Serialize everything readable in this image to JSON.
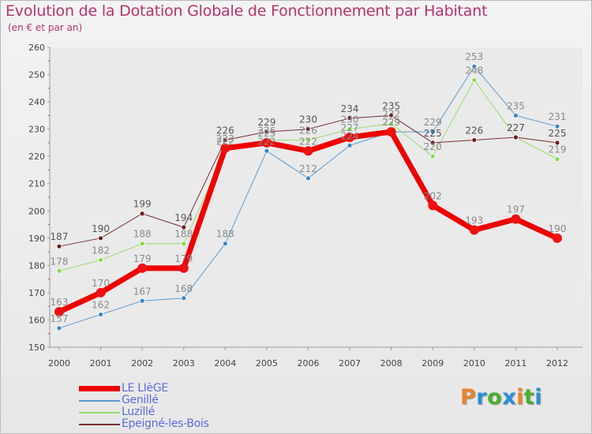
{
  "header": {
    "title": "Evolution de la Dotation Globale de Fonctionnement par Habitant",
    "subtitle": "(en € et par an)"
  },
  "logo": {
    "text": "Proxiti",
    "letters": [
      {
        "char": "P",
        "color": "#e8842a"
      },
      {
        "char": "r",
        "color": "#2a8fd6"
      },
      {
        "char": "o",
        "color": "#4dae2f"
      },
      {
        "char": "x",
        "color": "#2a8fd6"
      },
      {
        "char": "i",
        "color": "#e8842a"
      },
      {
        "char": "t",
        "color": "#4dae2f"
      },
      {
        "char": "i",
        "color": "#2a8fd6"
      }
    ]
  },
  "chart_data": {
    "type": "line",
    "title": "Evolution de la Dotation Globale de Fonctionnement par Habitant",
    "subtitle": "(en € et par an)",
    "xlabel": "",
    "ylabel": "",
    "categories": [
      "2000",
      "2001",
      "2002",
      "2003",
      "2004",
      "2005",
      "2006",
      "2007",
      "2008",
      "2009",
      "2010",
      "2011",
      "2012"
    ],
    "ylim": [
      150,
      260
    ],
    "yticks": [
      150,
      160,
      170,
      180,
      190,
      200,
      210,
      220,
      230,
      240,
      250,
      260
    ],
    "grid": false,
    "legend_position": "bottom-left",
    "series": [
      {
        "name": "LE LIèGE",
        "color": "#ee0000",
        "marker": "#ee1111",
        "width": 7,
        "values": [
          163,
          170,
          179,
          179,
          223,
          225,
          222,
          227,
          229,
          202,
          193,
          197,
          190
        ]
      },
      {
        "name": "Genillé",
        "color": "#5b9bd0",
        "marker": "#3a85c8",
        "width": 1,
        "values": [
          157,
          162,
          167,
          168,
          188,
          222,
          212,
          224,
          229,
          229,
          253,
          235,
          231
        ]
      },
      {
        "name": "Luzillé",
        "color": "#98de6e",
        "marker": "#86d94f",
        "width": 1,
        "values": [
          178,
          182,
          188,
          188,
          222,
          226,
          226,
          230,
          232,
          220,
          248,
          227,
          219
        ]
      },
      {
        "name": "Epeigné-les-Bois",
        "color": "#7a2e2e",
        "marker": "#6b1f1f",
        "width": 1,
        "values": [
          187,
          190,
          199,
          194,
          226,
          229,
          230,
          234,
          235,
          225,
          226,
          227,
          225
        ]
      }
    ],
    "data_labels": [
      [
        163,
        170,
        179,
        179,
        223,
        225,
        222,
        227,
        229,
        202,
        193,
        197,
        190
      ],
      [
        157,
        162,
        167,
        168,
        188,
        222,
        212,
        224,
        229,
        229,
        253,
        235,
        231
      ],
      [
        178,
        182,
        188,
        188,
        222,
        226,
        226,
        230,
        232,
        220,
        248,
        227,
        219
      ],
      [
        187,
        190,
        199,
        194,
        226,
        229,
        230,
        234,
        235,
        225,
        226,
        227,
        225
      ]
    ]
  }
}
